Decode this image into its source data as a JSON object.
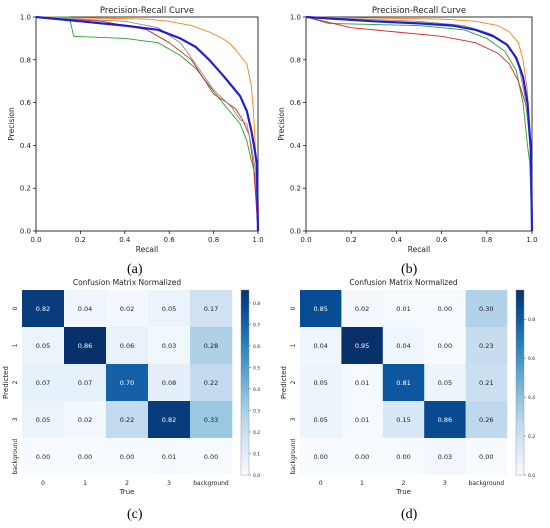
{
  "chart_data": [
    {
      "type": "line",
      "title": "Precision-Recall Curve",
      "xlabel": "Recall",
      "ylabel": "Precision",
      "xlim": [
        0,
        1
      ],
      "ylim": [
        0,
        1
      ],
      "xticks": [
        "0.0",
        "0.2",
        "0.4",
        "0.6",
        "0.8",
        "1.0"
      ],
      "yticks": [
        "0.0",
        "0.2",
        "0.4",
        "0.6",
        "0.8",
        "1.0"
      ],
      "series": [
        {
          "color": "#2ca02c",
          "points": [
            [
              0,
              1.0
            ],
            [
              0.15,
              1.0
            ],
            [
              0.17,
              0.91
            ],
            [
              0.4,
              0.9
            ],
            [
              0.55,
              0.88
            ],
            [
              0.65,
              0.82
            ],
            [
              0.72,
              0.76
            ],
            [
              0.78,
              0.68
            ],
            [
              0.84,
              0.6
            ],
            [
              0.88,
              0.55
            ],
            [
              0.92,
              0.5
            ],
            [
              0.95,
              0.42
            ],
            [
              0.97,
              0.33
            ],
            [
              0.985,
              0.27
            ],
            [
              1.0,
              0.0
            ]
          ]
        },
        {
          "color": "#ff7f0e",
          "points": [
            [
              0,
              1.0
            ],
            [
              0.5,
              0.99
            ],
            [
              0.6,
              0.98
            ],
            [
              0.7,
              0.96
            ],
            [
              0.78,
              0.93
            ],
            [
              0.84,
              0.9
            ],
            [
              0.88,
              0.87
            ],
            [
              0.92,
              0.82
            ],
            [
              0.95,
              0.78
            ],
            [
              0.97,
              0.68
            ],
            [
              0.98,
              0.55
            ],
            [
              0.99,
              0.35
            ],
            [
              1.0,
              0.0
            ]
          ]
        },
        {
          "color": "#d62728",
          "points": [
            [
              0,
              1.0
            ],
            [
              0.3,
              0.98
            ],
            [
              0.5,
              0.94
            ],
            [
              0.6,
              0.88
            ],
            [
              0.7,
              0.8
            ],
            [
              0.75,
              0.72
            ],
            [
              0.8,
              0.64
            ],
            [
              0.86,
              0.6
            ],
            [
              0.9,
              0.57
            ],
            [
              0.93,
              0.52
            ],
            [
              0.96,
              0.45
            ],
            [
              0.98,
              0.3
            ],
            [
              1.0,
              0.0
            ]
          ]
        },
        {
          "color": "#8c8c8c",
          "points": [
            [
              0,
              1.0
            ],
            [
              0.4,
              0.98
            ],
            [
              0.55,
              0.95
            ],
            [
              0.65,
              0.88
            ],
            [
              0.72,
              0.78
            ],
            [
              0.8,
              0.66
            ],
            [
              0.88,
              0.58
            ],
            [
              0.92,
              0.52
            ],
            [
              0.95,
              0.5
            ],
            [
              0.97,
              0.4
            ],
            [
              0.99,
              0.28
            ],
            [
              1.0,
              0.0
            ]
          ]
        },
        {
          "color": "#1f1fd0",
          "bold": true,
          "points": [
            [
              0,
              1.0
            ],
            [
              0.2,
              0.98
            ],
            [
              0.4,
              0.96
            ],
            [
              0.55,
              0.94
            ],
            [
              0.65,
              0.9
            ],
            [
              0.72,
              0.86
            ],
            [
              0.78,
              0.8
            ],
            [
              0.84,
              0.73
            ],
            [
              0.88,
              0.68
            ],
            [
              0.92,
              0.63
            ],
            [
              0.95,
              0.56
            ],
            [
              0.97,
              0.47
            ],
            [
              0.985,
              0.38
            ],
            [
              0.995,
              0.31
            ],
            [
              1.0,
              0.0
            ]
          ]
        }
      ]
    },
    {
      "type": "line",
      "title": "Precision-Recall Curve",
      "xlabel": "Recall",
      "ylabel": "Precision",
      "xlim": [
        0,
        1
      ],
      "ylim": [
        0,
        1
      ],
      "xticks": [
        "0.0",
        "0.2",
        "0.4",
        "0.6",
        "0.8",
        "1.0"
      ],
      "yticks": [
        "0.0",
        "0.2",
        "0.4",
        "0.6",
        "0.8",
        "1.0"
      ],
      "series": [
        {
          "color": "#2ca02c",
          "points": [
            [
              0,
              1.0
            ],
            [
              0.1,
              0.97
            ],
            [
              0.5,
              0.96
            ],
            [
              0.7,
              0.94
            ],
            [
              0.8,
              0.9
            ],
            [
              0.88,
              0.84
            ],
            [
              0.93,
              0.75
            ],
            [
              0.96,
              0.6
            ],
            [
              0.98,
              0.4
            ],
            [
              0.99,
              0.32
            ],
            [
              1.0,
              0.0
            ]
          ]
        },
        {
          "color": "#ff7f0e",
          "points": [
            [
              0,
              1.0
            ],
            [
              0.6,
              0.99
            ],
            [
              0.75,
              0.98
            ],
            [
              0.85,
              0.96
            ],
            [
              0.9,
              0.93
            ],
            [
              0.94,
              0.88
            ],
            [
              0.96,
              0.8
            ],
            [
              0.98,
              0.65
            ],
            [
              0.99,
              0.45
            ],
            [
              1.0,
              0.0
            ]
          ]
        },
        {
          "color": "#d62728",
          "points": [
            [
              0,
              1.0
            ],
            [
              0.2,
              0.95
            ],
            [
              0.4,
              0.93
            ],
            [
              0.6,
              0.91
            ],
            [
              0.75,
              0.88
            ],
            [
              0.85,
              0.83
            ],
            [
              0.9,
              0.78
            ],
            [
              0.94,
              0.7
            ],
            [
              0.97,
              0.6
            ],
            [
              0.99,
              0.48
            ],
            [
              1.0,
              0.0
            ]
          ]
        },
        {
          "color": "#8c8c8c",
          "points": [
            [
              0,
              1.0
            ],
            [
              0.5,
              0.98
            ],
            [
              0.7,
              0.96
            ],
            [
              0.82,
              0.92
            ],
            [
              0.9,
              0.86
            ],
            [
              0.94,
              0.78
            ],
            [
              0.97,
              0.62
            ],
            [
              0.99,
              0.42
            ],
            [
              1.0,
              0.0
            ]
          ]
        },
        {
          "color": "#1f1fd0",
          "bold": true,
          "points": [
            [
              0,
              1.0
            ],
            [
              0.3,
              0.98
            ],
            [
              0.5,
              0.97
            ],
            [
              0.65,
              0.96
            ],
            [
              0.75,
              0.94
            ],
            [
              0.83,
              0.91
            ],
            [
              0.89,
              0.87
            ],
            [
              0.93,
              0.81
            ],
            [
              0.96,
              0.72
            ],
            [
              0.98,
              0.6
            ],
            [
              0.99,
              0.45
            ],
            [
              0.995,
              0.38
            ],
            [
              1.0,
              0.0
            ]
          ]
        }
      ]
    },
    {
      "type": "heatmap",
      "title": "Confusion Matrix Normalized",
      "xlabel": "True",
      "ylabel": "Predicted",
      "categories": [
        "0",
        "1",
        "2",
        "3",
        "background"
      ],
      "values": [
        [
          0.82,
          0.04,
          0.02,
          0.05,
          0.17
        ],
        [
          0.05,
          0.86,
          0.06,
          0.03,
          0.28
        ],
        [
          0.07,
          0.07,
          0.7,
          0.08,
          0.22
        ],
        [
          0.05,
          0.02,
          0.22,
          0.82,
          0.33
        ],
        [
          0.0,
          0.0,
          0.0,
          0.01,
          0.0
        ]
      ],
      "colorbar_ticks": [
        "0.0",
        "0.1",
        "0.2",
        "0.3",
        "0.4",
        "0.5",
        "0.6",
        "0.7",
        "0.8"
      ],
      "colorbar_range": [
        0,
        0.86
      ]
    },
    {
      "type": "heatmap",
      "title": "Confusion Matrix Normalized",
      "xlabel": "True",
      "ylabel": "Predicted",
      "categories": [
        "0",
        "1",
        "2",
        "3",
        "background"
      ],
      "values": [
        [
          0.85,
          0.02,
          0.01,
          0.0,
          0.3
        ],
        [
          0.04,
          0.95,
          0.04,
          0.0,
          0.23
        ],
        [
          0.05,
          0.01,
          0.81,
          0.05,
          0.21
        ],
        [
          0.05,
          0.01,
          0.15,
          0.86,
          0.26
        ],
        [
          0.0,
          0.0,
          0.0,
          0.03,
          0.0
        ]
      ],
      "colorbar_ticks": [
        "0.0",
        "0.2",
        "0.4",
        "0.6",
        "0.8"
      ],
      "colorbar_range": [
        0,
        0.95
      ]
    }
  ],
  "panel_labels": [
    "(a)",
    "(b)",
    "(c)",
    "(d)"
  ]
}
